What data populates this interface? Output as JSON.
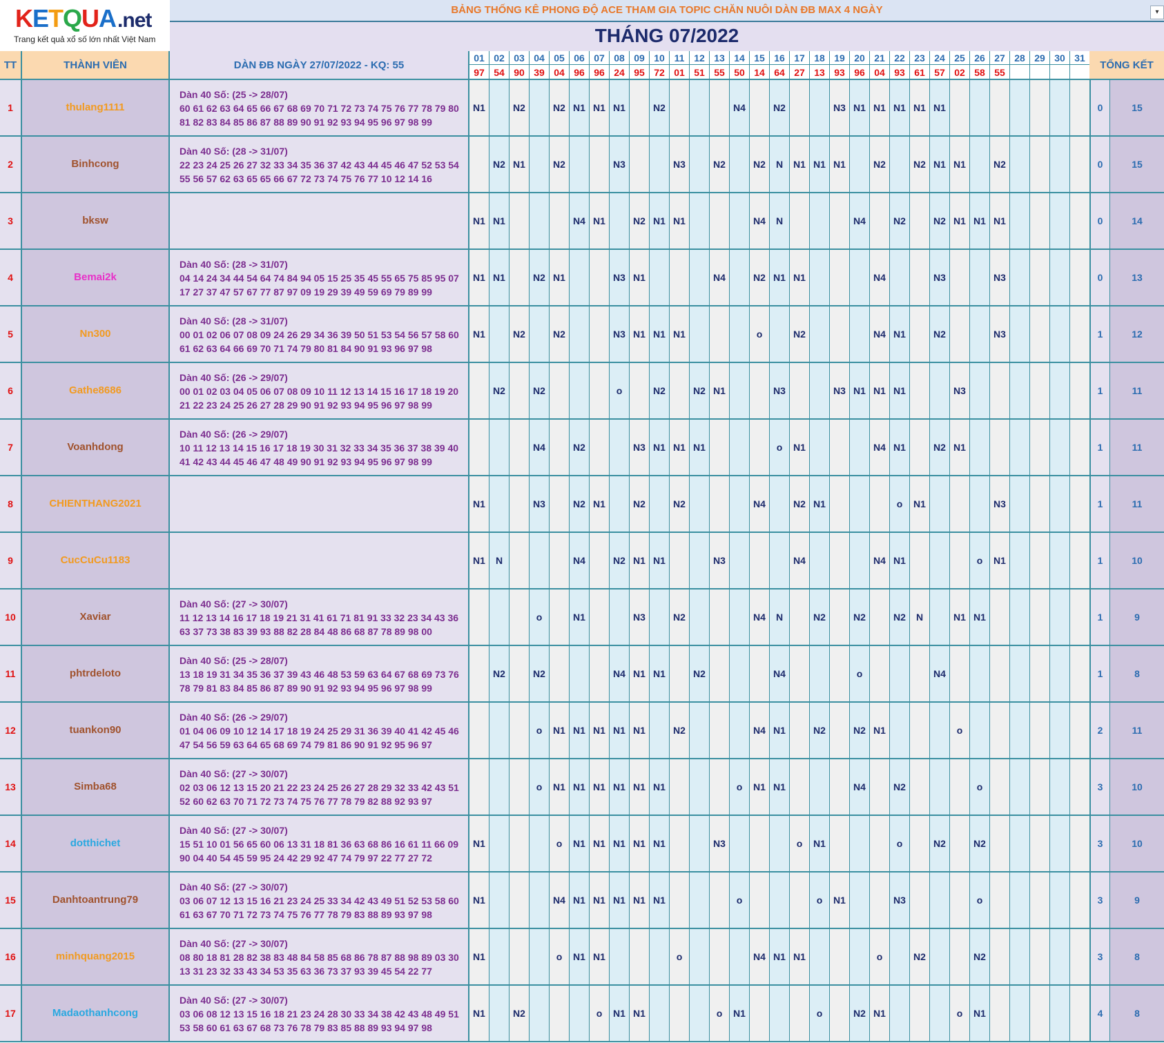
{
  "logo": {
    "brand_k": "K",
    "brand_e": "E",
    "brand_t": "T",
    "brand_q": "Q",
    "brand_u": "U",
    "brand_a": "A",
    "brand_net": ".net",
    "tagline": "Trang kết quả xổ số lớn nhất Việt Nam"
  },
  "header": {
    "title": "BẢNG THỐNG KÊ PHONG ĐỘ ACE THAM GIA TOPIC CHĂN NUÔI DÀN ĐB MAX 4 NGÀY",
    "month": "THÁNG 07/2022",
    "col_tt": "TT",
    "col_member": "THÀNH VIÊN",
    "col_dan": "DÀN ĐB NGÀY 27/07/2022 - KQ: 55",
    "col_total": "TỔNG KẾT"
  },
  "days": [
    "01",
    "02",
    "03",
    "04",
    "05",
    "06",
    "07",
    "08",
    "09",
    "10",
    "11",
    "12",
    "13",
    "14",
    "15",
    "16",
    "17",
    "18",
    "19",
    "20",
    "21",
    "22",
    "23",
    "24",
    "25",
    "26",
    "27",
    "28",
    "29",
    "30",
    "31"
  ],
  "results": [
    "97",
    "54",
    "90",
    "39",
    "04",
    "96",
    "96",
    "24",
    "95",
    "72",
    "01",
    "51",
    "55",
    "50",
    "14",
    "64",
    "27",
    "13",
    "93",
    "96",
    "04",
    "93",
    "61",
    "57",
    "02",
    "58",
    "55",
    "",
    "",
    "",
    ""
  ],
  "colors": {
    "orange": "#f29a1f",
    "brown": "#a0522d",
    "magenta": "#e830c8",
    "cyan": "#29a8e0"
  },
  "rows": [
    {
      "tt": "1",
      "name": "thulang1111",
      "color": "orange",
      "dan_l1": "Dàn 40 Số: (25 -> 28/07)",
      "dan_l2": "60 61 62 63 64 65 66 67 68 69 70 71 72 73 74 75 76 77 78 79 80",
      "dan_l3": "81 82 83 84 85 86 87 88 89 90 91 92 93 94 95 96 97 98 99",
      "days": [
        "N1",
        "",
        "N2",
        "",
        "N2",
        "N1",
        "N1",
        "N1",
        "",
        "N2",
        "",
        "",
        "",
        "N4",
        "",
        "N2",
        "",
        "",
        "N3",
        "N1",
        "N1",
        "N1",
        "N1",
        "N1",
        "",
        "",
        "",
        "",
        "",
        "",
        ""
      ],
      "win": "0",
      "total": "15"
    },
    {
      "tt": "2",
      "name": "Binhcong",
      "color": "brown",
      "dan_l1": "Dàn 40 Số: (28 -> 31/07)",
      "dan_l2": "22 23 24 25 26 27 32 33 34 35 36 37 42 43 44 45 46 47 52 53 54",
      "dan_l3": "55 56 57 62 63 65 65 66 67 72 73 74 75 76 77 10 12 14 16",
      "days": [
        "",
        "N2",
        "N1",
        "",
        "N2",
        "",
        "",
        "N3",
        "",
        "",
        "N3",
        "",
        "N2",
        "",
        "N2",
        "N",
        "N1",
        "N1",
        "N1",
        "",
        "N2",
        "",
        "N2",
        "N1",
        "N1",
        "",
        "N2",
        "",
        "",
        "",
        ""
      ],
      "win": "0",
      "total": "15"
    },
    {
      "tt": "3",
      "name": "bksw",
      "color": "brown",
      "dan_l1": "",
      "dan_l2": "",
      "dan_l3": "",
      "days": [
        "N1",
        "N1",
        "",
        "",
        "",
        "N4",
        "N1",
        "",
        "N2",
        "N1",
        "N1",
        "",
        "",
        "",
        "N4",
        "N",
        "",
        "",
        "",
        "N4",
        "",
        "N2",
        "",
        "N2",
        "N1",
        "N1",
        "N1",
        "",
        "",
        "",
        ""
      ],
      "win": "0",
      "total": "14"
    },
    {
      "tt": "4",
      "name": "Bemai2k",
      "color": "magenta",
      "dan_l1": "Dàn 40 Số: (28 -> 31/07)",
      "dan_l2": "04 14 24 34 44 54 64 74 84 94 05 15 25 35 45 55 65 75 85 95 07",
      "dan_l3": "17 27 37 47 57 67 77 87 97 09 19 29 39 49 59 69 79 89 99",
      "days": [
        "N1",
        "N1",
        "",
        "N2",
        "N1",
        "",
        "",
        "N3",
        "N1",
        "",
        "",
        "",
        "N4",
        "",
        "N2",
        "N1",
        "N1",
        "",
        "",
        "",
        "N4",
        "",
        "",
        "N3",
        "",
        "",
        "N3",
        "",
        "",
        "",
        ""
      ],
      "win": "0",
      "total": "13"
    },
    {
      "tt": "5",
      "name": "Nn300",
      "color": "orange",
      "dan_l1": "Dàn 40 Số: (28 -> 31/07)",
      "dan_l2": "00 01 02 06 07 08 09 24 26 29 34 36 39 50 51 53 54 56 57 58 60",
      "dan_l3": "61 62 63 64 66 69 70 71 74 79 80 81 84 90 91 93 96 97 98",
      "days": [
        "N1",
        "",
        "N2",
        "",
        "N2",
        "",
        "",
        "N3",
        "N1",
        "N1",
        "N1",
        "",
        "",
        "",
        "o",
        "",
        "N2",
        "",
        "",
        "",
        "N4",
        "N1",
        "",
        "N2",
        "",
        "",
        "N3",
        "",
        "",
        "",
        ""
      ],
      "win": "1",
      "total": "12"
    },
    {
      "tt": "6",
      "name": "Gathe8686",
      "color": "orange",
      "dan_l1": "Dàn 40 Số: (26 -> 29/07)",
      "dan_l2": "00 01 02 03 04 05 06 07 08 09 10 11 12 13 14 15 16 17 18 19 20",
      "dan_l3": "21 22 23 24 25 26 27 28 29 90 91 92 93 94 95 96 97 98 99",
      "days": [
        "",
        "N2",
        "",
        "N2",
        "",
        "",
        "",
        "o",
        "",
        "N2",
        "",
        "N2",
        "N1",
        "",
        "",
        "N3",
        "",
        "",
        "N3",
        "N1",
        "N1",
        "N1",
        "",
        "",
        "N3",
        "",
        "",
        "",
        "",
        "",
        ""
      ],
      "win": "1",
      "total": "11"
    },
    {
      "tt": "7",
      "name": "Voanhdong",
      "color": "brown",
      "dan_l1": "Dàn 40 Số: (26 -> 29/07)",
      "dan_l2": "10 11 12 13 14 15 16 17 18 19 30 31 32 33 34 35 36 37 38 39 40",
      "dan_l3": "41 42 43 44 45 46 47 48 49 90 91 92 93 94 95 96 97 98 99",
      "days": [
        "",
        "",
        "",
        "N4",
        "",
        "N2",
        "",
        "",
        "N3",
        "N1",
        "N1",
        "N1",
        "",
        "",
        "",
        "o",
        "N1",
        "",
        "",
        "",
        "N4",
        "N1",
        "",
        "N2",
        "N1",
        "",
        "",
        "",
        "",
        "",
        ""
      ],
      "win": "1",
      "total": "11"
    },
    {
      "tt": "8",
      "name": "CHIENTHANG2021",
      "color": "orange",
      "dan_l1": "",
      "dan_l2": "",
      "dan_l3": "",
      "days": [
        "N1",
        "",
        "",
        "N3",
        "",
        "N2",
        "N1",
        "",
        "N2",
        "",
        "N2",
        "",
        "",
        "",
        "N4",
        "",
        "N2",
        "N1",
        "",
        "",
        "",
        "o",
        "N1",
        "",
        "",
        "",
        "N3",
        "",
        "",
        "",
        ""
      ],
      "win": "1",
      "total": "11"
    },
    {
      "tt": "9",
      "name": "CucCuCu1183",
      "color": "orange",
      "dan_l1": "",
      "dan_l2": "",
      "dan_l3": "",
      "days": [
        "N1",
        "N",
        "",
        "",
        "",
        "N4",
        "",
        "N2",
        "N1",
        "N1",
        "",
        "",
        "N3",
        "",
        "",
        "",
        "N4",
        "",
        "",
        "",
        "N4",
        "N1",
        "",
        "",
        "",
        "o",
        "N1",
        "",
        "",
        "",
        ""
      ],
      "win": "1",
      "total": "10"
    },
    {
      "tt": "10",
      "name": "Xaviar",
      "color": "brown",
      "dan_l1": "Dàn 40 Số: (27 -> 30/07)",
      "dan_l2": "11 12 13 14 16 17 18 19 21 31 41 61 71 81 91 33 32 23 34 43 36",
      "dan_l3": "63 37 73 38 83 39 93 88 82 28 84 48 86 68 87 78 89 98 00",
      "days": [
        "",
        "",
        "",
        "o",
        "",
        "N1",
        "",
        "",
        "N3",
        "",
        "N2",
        "",
        "",
        "",
        "N4",
        "N",
        "",
        "N2",
        "",
        "N2",
        "",
        "N2",
        "N",
        "",
        "N1",
        "N1",
        "",
        "",
        "",
        "",
        ""
      ],
      "win": "1",
      "total": "9"
    },
    {
      "tt": "11",
      "name": "phtrdeloto",
      "color": "brown",
      "dan_l1": "Dàn 40 Số: (25 -> 28/07)",
      "dan_l2": "13 18 19 31 34 35 36 37 39 43 46 48 53 59 63 64 67 68 69 73 76",
      "dan_l3": "78 79 81 83 84 85 86 87 89 90 91 92 93 94 95 96 97 98 99",
      "days": [
        "",
        "N2",
        "",
        "N2",
        "",
        "",
        "",
        "N4",
        "N1",
        "N1",
        "",
        "N2",
        "",
        "",
        "",
        "N4",
        "",
        "",
        "",
        "o",
        "",
        "",
        "",
        "N4",
        "",
        "",
        "",
        "",
        "",
        "",
        ""
      ],
      "win": "1",
      "total": "8"
    },
    {
      "tt": "12",
      "name": "tuankon90",
      "color": "brown",
      "dan_l1": "Dàn 40 Số: (26 -> 29/07)",
      "dan_l2": "01 04 06 09 10 12 14 17 18 19 24 25 29 31 36 39 40 41 42 45 46",
      "dan_l3": "47 54 56 59 63 64 65 68 69 74 79 81 86 90 91 92 95 96 97",
      "days": [
        "",
        "",
        "",
        "o",
        "N1",
        "N1",
        "N1",
        "N1",
        "N1",
        "",
        "N2",
        "",
        "",
        "",
        "N4",
        "N1",
        "",
        "N2",
        "",
        "N2",
        "N1",
        "",
        "",
        "",
        "o",
        "",
        "",
        "",
        "",
        "",
        ""
      ],
      "win": "2",
      "total": "11"
    },
    {
      "tt": "13",
      "name": "Simba68",
      "color": "brown",
      "dan_l1": "Dàn 40 Số: (27 -> 30/07)",
      "dan_l2": "02 03 06 12 13 15 20 21 22 23 24 25 26 27 28 29 32 33 42 43 51",
      "dan_l3": "52 60 62 63 70 71 72 73 74 75 76 77 78 79 82 88 92 93 97",
      "days": [
        "",
        "",
        "",
        "o",
        "N1",
        "N1",
        "N1",
        "N1",
        "N1",
        "N1",
        "",
        "",
        "",
        "o",
        "N1",
        "N1",
        "",
        "",
        "",
        "N4",
        "",
        "N2",
        "",
        "",
        "",
        "o",
        "",
        "",
        "",
        "",
        ""
      ],
      "win": "3",
      "total": "10"
    },
    {
      "tt": "14",
      "name": "dotthichet",
      "color": "cyan",
      "dan_l1": "Dàn 40 Số: (27 -> 30/07)",
      "dan_l2": "15 51 10 01 56 65 60 06 13 31 18 81 36 63 68 86 16 61 11 66 09",
      "dan_l3": "90 04 40 54 45 59 95 24 42 29 92 47 74 79 97 22 77 27 72",
      "days": [
        "N1",
        "",
        "",
        "",
        "o",
        "N1",
        "N1",
        "N1",
        "N1",
        "N1",
        "",
        "",
        "N3",
        "",
        "",
        "",
        "o",
        "N1",
        "",
        "",
        "",
        "o",
        "",
        "N2",
        "",
        "N2",
        "",
        "",
        "",
        "",
        ""
      ],
      "win": "3",
      "total": "10"
    },
    {
      "tt": "15",
      "name": "Danhtoantrung79",
      "color": "brown",
      "dan_l1": "Dàn 40 Số: (27 -> 30/07)",
      "dan_l2": "03 06 07 12 13 15 16 21 23 24 25 33 34 42 43 49 51 52 53 58 60",
      "dan_l3": "61 63 67 70 71 72 73 74 75 76 77 78 79 83 88 89 93 97 98",
      "days": [
        "N1",
        "",
        "",
        "",
        "N4",
        "N1",
        "N1",
        "N1",
        "N1",
        "N1",
        "",
        "",
        "",
        "o",
        "",
        "",
        "",
        "o",
        "N1",
        "",
        "",
        "N3",
        "",
        "",
        "",
        "o",
        "",
        "",
        "",
        "",
        ""
      ],
      "win": "3",
      "total": "9"
    },
    {
      "tt": "16",
      "name": "minhquang2015",
      "color": "orange",
      "dan_l1": "Dàn 40 Số: (27 -> 30/07)",
      "dan_l2": "08 80 18 81 28 82 38 83 48 84 58 85 68 86 78 87 88 98 89 03 30",
      "dan_l3": "13 31 23 32 33 43 34 53 35 63 36 73 37 93 39 45 54 22 77",
      "days": [
        "N1",
        "",
        "",
        "",
        "o",
        "N1",
        "N1",
        "",
        "",
        "",
        "o",
        "",
        "",
        "",
        "N4",
        "N1",
        "N1",
        "",
        "",
        "",
        "o",
        "",
        "N2",
        "",
        "",
        "N2",
        "",
        "",
        "",
        "",
        ""
      ],
      "win": "3",
      "total": "8"
    },
    {
      "tt": "17",
      "name": "Madaothanhcong",
      "color": "cyan",
      "dan_l1": "Dàn 40 Số: (27 -> 30/07)",
      "dan_l2": "03 06 08 12 13 15 16 18 21 23 24 28 30 33 34 38 42 43 48 49 51",
      "dan_l3": "53 58 60 61 63 67 68 73 76 78 79 83 85 88 89 93 94 97 98",
      "days": [
        "N1",
        "",
        "N2",
        "",
        "",
        "",
        "o",
        "N1",
        "N1",
        "",
        "",
        "",
        "o",
        "N1",
        "",
        "",
        "",
        "o",
        "",
        "N2",
        "N1",
        "",
        "",
        "",
        "o",
        "N1",
        "",
        "",
        "",
        "",
        ""
      ],
      "win": "4",
      "total": "8"
    }
  ]
}
